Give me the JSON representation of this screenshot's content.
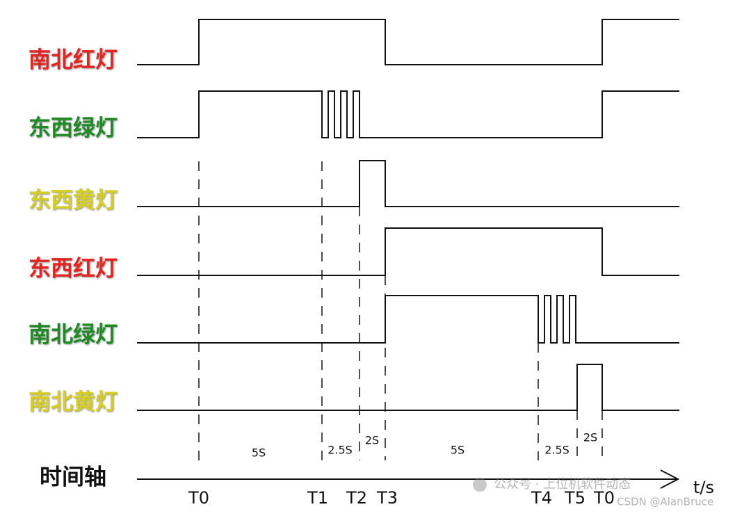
{
  "signals": [
    {
      "label": "南北红灯"
    },
    {
      "label": "东西绿灯"
    },
    {
      "label": "东西黄灯"
    },
    {
      "label": "东西红灯"
    },
    {
      "label": "南北绿灯"
    },
    {
      "label": "南北黄灯"
    }
  ],
  "time_axis": {
    "label": "时间轴",
    "unit": "t/s",
    "markers": [
      "T0",
      "T1",
      "T2",
      "T3",
      "T4",
      "T5",
      "T0"
    ],
    "intervals": [
      "5S",
      "2.5S",
      "2S",
      "5S",
      "2.5S",
      "2S"
    ]
  },
  "watermark": {
    "wechat": "公众号 · 上位机软件动态",
    "csdn": "CSDN @AlanBruce"
  }
}
